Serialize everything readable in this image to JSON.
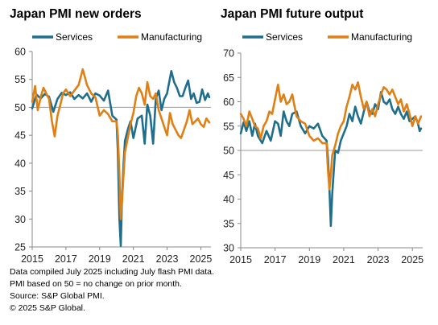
{
  "colors": {
    "services": "#1f6e8c",
    "manufacturing": "#e07f14",
    "reference_line": "#9a9a9a",
    "axis": "#888888"
  },
  "footer": {
    "line1": "Data compiled July 2025 including July flash PMI data.",
    "line2": "PMI based on 50 = no change on prior month.",
    "line3": "Source: S&P Global PMI.",
    "line4": "© 2025 S&P Global."
  },
  "chart_data": [
    {
      "type": "line",
      "title": "Japan PMI new orders",
      "ylim": [
        25,
        60
      ],
      "yticks": [
        25,
        30,
        35,
        40,
        45,
        50,
        55,
        60
      ],
      "xlim": [
        2015.0,
        2025.6
      ],
      "xticks": [
        "2015",
        "2017",
        "2019",
        "2021",
        "2023",
        "2025"
      ],
      "reference_line": 50,
      "legend_position": "top",
      "series": [
        {
          "name": "Services",
          "points": [
            [
              2015.0,
              49.8
            ],
            [
              2015.25,
              52.3
            ],
            [
              2015.5,
              51.6
            ],
            [
              2015.75,
              52.4
            ],
            [
              2016.0,
              51.9
            ],
            [
              2016.25,
              49.2
            ],
            [
              2016.5,
              51.5
            ],
            [
              2016.75,
              52.6
            ],
            [
              2017.0,
              52.2
            ],
            [
              2017.25,
              52.7
            ],
            [
              2017.5,
              51.5
            ],
            [
              2017.75,
              52.2
            ],
            [
              2018.0,
              51.6
            ],
            [
              2018.25,
              52.5
            ],
            [
              2018.5,
              51.0
            ],
            [
              2018.75,
              52.5
            ],
            [
              2019.0,
              52.1
            ],
            [
              2019.25,
              51.2
            ],
            [
              2019.5,
              53.0
            ],
            [
              2019.75,
              48.5
            ],
            [
              2020.0,
              47.8
            ],
            [
              2020.08,
              42.0
            ],
            [
              2020.17,
              30.0
            ],
            [
              2020.25,
              25.2
            ],
            [
              2020.33,
              34.0
            ],
            [
              2020.42,
              40.0
            ],
            [
              2020.5,
              44.0
            ],
            [
              2020.67,
              46.0
            ],
            [
              2020.83,
              47.5
            ],
            [
              2021.0,
              44.5
            ],
            [
              2021.25,
              48.0
            ],
            [
              2021.5,
              48.5
            ],
            [
              2021.67,
              43.5
            ],
            [
              2021.83,
              50.5
            ],
            [
              2022.0,
              48.5
            ],
            [
              2022.17,
              43.5
            ],
            [
              2022.33,
              51.5
            ],
            [
              2022.5,
              53.0
            ],
            [
              2022.67,
              49.5
            ],
            [
              2022.83,
              51.5
            ],
            [
              2023.0,
              52.5
            ],
            [
              2023.25,
              56.5
            ],
            [
              2023.42,
              54.5
            ],
            [
              2023.58,
              53.5
            ],
            [
              2023.75,
              52.0
            ],
            [
              2023.92,
              52.0
            ],
            [
              2024.08,
              53.5
            ],
            [
              2024.25,
              54.8
            ],
            [
              2024.42,
              51.5
            ],
            [
              2024.58,
              52.5
            ],
            [
              2024.75,
              50.8
            ],
            [
              2024.92,
              51.0
            ],
            [
              2025.08,
              53.2
            ],
            [
              2025.25,
              51.3
            ],
            [
              2025.42,
              52.5
            ],
            [
              2025.5,
              51.8
            ]
          ]
        },
        {
          "name": "Manufacturing",
          "points": [
            [
              2015.0,
              51.0
            ],
            [
              2015.17,
              53.8
            ],
            [
              2015.33,
              49.5
            ],
            [
              2015.5,
              51.8
            ],
            [
              2015.67,
              53.5
            ],
            [
              2015.83,
              52.5
            ],
            [
              2016.0,
              51.5
            ],
            [
              2016.17,
              47.5
            ],
            [
              2016.33,
              44.8
            ],
            [
              2016.5,
              48.5
            ],
            [
              2016.67,
              50.5
            ],
            [
              2016.83,
              52.5
            ],
            [
              2017.0,
              53.2
            ],
            [
              2017.25,
              52.0
            ],
            [
              2017.5,
              53.0
            ],
            [
              2017.75,
              54.0
            ],
            [
              2018.0,
              56.8
            ],
            [
              2018.25,
              54.0
            ],
            [
              2018.5,
              52.5
            ],
            [
              2018.75,
              51.8
            ],
            [
              2019.0,
              48.5
            ],
            [
              2019.25,
              49.5
            ],
            [
              2019.5,
              48.8
            ],
            [
              2019.75,
              47.5
            ],
            [
              2020.0,
              47.5
            ],
            [
              2020.08,
              45.0
            ],
            [
              2020.17,
              38.0
            ],
            [
              2020.25,
              30.0
            ],
            [
              2020.33,
              33.5
            ],
            [
              2020.42,
              38.0
            ],
            [
              2020.5,
              42.0
            ],
            [
              2020.67,
              44.5
            ],
            [
              2020.83,
              47.0
            ],
            [
              2021.0,
              49.0
            ],
            [
              2021.17,
              52.0
            ],
            [
              2021.33,
              53.5
            ],
            [
              2021.5,
              52.5
            ],
            [
              2021.67,
              50.5
            ],
            [
              2021.83,
              54.5
            ],
            [
              2022.0,
              52.0
            ],
            [
              2022.17,
              51.5
            ],
            [
              2022.33,
              52.5
            ],
            [
              2022.5,
              49.5
            ],
            [
              2022.67,
              48.0
            ],
            [
              2022.83,
              46.5
            ],
            [
              2023.0,
              45.0
            ],
            [
              2023.17,
              49.0
            ],
            [
              2023.33,
              47.0
            ],
            [
              2023.5,
              46.0
            ],
            [
              2023.67,
              45.0
            ],
            [
              2023.83,
              44.5
            ],
            [
              2024.0,
              46.0
            ],
            [
              2024.17,
              47.5
            ],
            [
              2024.33,
              49.5
            ],
            [
              2024.5,
              47.0
            ],
            [
              2024.67,
              47.5
            ],
            [
              2024.83,
              48.0
            ],
            [
              2025.0,
              47.0
            ],
            [
              2025.17,
              46.5
            ],
            [
              2025.33,
              48.0
            ],
            [
              2025.5,
              47.3
            ]
          ]
        }
      ]
    },
    {
      "type": "line",
      "title": "Japan PMI future output",
      "ylim": [
        30,
        70
      ],
      "yticks": [
        30,
        35,
        40,
        45,
        50,
        55,
        60,
        65,
        70
      ],
      "xlim": [
        2015.0,
        2025.6
      ],
      "xticks": [
        "2015",
        "2017",
        "2019",
        "2021",
        "2023",
        "2025"
      ],
      "reference_line": 50,
      "legend_position": "top",
      "series": [
        {
          "name": "Services",
          "points": [
            [
              2015.0,
              53.5
            ],
            [
              2015.17,
              55.8
            ],
            [
              2015.33,
              54.0
            ],
            [
              2015.5,
              56.0
            ],
            [
              2015.67,
              53.0
            ],
            [
              2015.83,
              55.5
            ],
            [
              2016.0,
              53.0
            ],
            [
              2016.25,
              51.5
            ],
            [
              2016.5,
              54.0
            ],
            [
              2016.75,
              52.0
            ],
            [
              2017.0,
              56.0
            ],
            [
              2017.17,
              55.5
            ],
            [
              2017.33,
              53.0
            ],
            [
              2017.5,
              58.0
            ],
            [
              2017.67,
              56.0
            ],
            [
              2017.83,
              55.0
            ],
            [
              2018.0,
              57.5
            ],
            [
              2018.25,
              58.0
            ],
            [
              2018.5,
              55.0
            ],
            [
              2018.75,
              53.5
            ],
            [
              2019.0,
              55.0
            ],
            [
              2019.25,
              54.5
            ],
            [
              2019.5,
              55.5
            ],
            [
              2019.75,
              53.0
            ],
            [
              2020.0,
              52.0
            ],
            [
              2020.08,
              48.5
            ],
            [
              2020.17,
              42.0
            ],
            [
              2020.25,
              34.5
            ],
            [
              2020.33,
              41.0
            ],
            [
              2020.42,
              46.0
            ],
            [
              2020.5,
              50.0
            ],
            [
              2020.67,
              49.5
            ],
            [
              2020.83,
              52.0
            ],
            [
              2021.0,
              53.5
            ],
            [
              2021.17,
              55.0
            ],
            [
              2021.33,
              57.5
            ],
            [
              2021.5,
              56.0
            ],
            [
              2021.67,
              59.0
            ],
            [
              2021.83,
              57.0
            ],
            [
              2022.0,
              55.5
            ],
            [
              2022.17,
              58.0
            ],
            [
              2022.33,
              60.0
            ],
            [
              2022.5,
              58.0
            ],
            [
              2022.67,
              57.5
            ],
            [
              2022.83,
              59.5
            ],
            [
              2023.0,
              58.5
            ],
            [
              2023.17,
              62.0
            ],
            [
              2023.33,
              60.0
            ],
            [
              2023.5,
              59.5
            ],
            [
              2023.67,
              60.5
            ],
            [
              2023.83,
              58.5
            ],
            [
              2024.0,
              57.5
            ],
            [
              2024.17,
              59.0
            ],
            [
              2024.33,
              57.5
            ],
            [
              2024.5,
              56.5
            ],
            [
              2024.67,
              58.0
            ],
            [
              2024.83,
              56.0
            ],
            [
              2025.0,
              56.5
            ],
            [
              2025.17,
              57.0
            ],
            [
              2025.33,
              55.5
            ],
            [
              2025.42,
              54.0
            ],
            [
              2025.5,
              54.5
            ]
          ]
        },
        {
          "name": "Manufacturing",
          "points": [
            [
              2015.0,
              57.5
            ],
            [
              2015.17,
              56.5
            ],
            [
              2015.33,
              55.0
            ],
            [
              2015.5,
              58.0
            ],
            [
              2015.67,
              56.5
            ],
            [
              2015.83,
              55.0
            ],
            [
              2016.0,
              54.5
            ],
            [
              2016.17,
              52.5
            ],
            [
              2016.33,
              55.0
            ],
            [
              2016.5,
              56.0
            ],
            [
              2016.67,
              58.0
            ],
            [
              2016.83,
              57.5
            ],
            [
              2017.0,
              60.5
            ],
            [
              2017.17,
              63.5
            ],
            [
              2017.33,
              60.0
            ],
            [
              2017.5,
              61.5
            ],
            [
              2017.67,
              59.5
            ],
            [
              2017.83,
              60.0
            ],
            [
              2018.0,
              61.5
            ],
            [
              2018.25,
              57.0
            ],
            [
              2018.5,
              56.0
            ],
            [
              2018.75,
              55.5
            ],
            [
              2019.0,
              53.0
            ],
            [
              2019.25,
              52.0
            ],
            [
              2019.5,
              52.5
            ],
            [
              2019.75,
              51.5
            ],
            [
              2020.0,
              51.5
            ],
            [
              2020.08,
              46.0
            ],
            [
              2020.17,
              42.0
            ],
            [
              2020.25,
              45.0
            ],
            [
              2020.33,
              49.0
            ],
            [
              2020.5,
              51.0
            ],
            [
              2020.67,
              53.5
            ],
            [
              2020.83,
              55.0
            ],
            [
              2021.0,
              56.0
            ],
            [
              2021.17,
              59.0
            ],
            [
              2021.33,
              61.0
            ],
            [
              2021.5,
              63.5
            ],
            [
              2021.67,
              62.5
            ],
            [
              2021.83,
              64.0
            ],
            [
              2022.0,
              61.0
            ],
            [
              2022.17,
              58.5
            ],
            [
              2022.33,
              60.0
            ],
            [
              2022.5,
              57.0
            ],
            [
              2022.67,
              58.5
            ],
            [
              2022.83,
              57.0
            ],
            [
              2023.0,
              59.5
            ],
            [
              2023.17,
              61.5
            ],
            [
              2023.33,
              63.0
            ],
            [
              2023.5,
              62.5
            ],
            [
              2023.67,
              61.5
            ],
            [
              2023.83,
              62.5
            ],
            [
              2024.0,
              61.0
            ],
            [
              2024.17,
              59.5
            ],
            [
              2024.33,
              60.5
            ],
            [
              2024.5,
              58.0
            ],
            [
              2024.67,
              59.5
            ],
            [
              2024.83,
              57.5
            ],
            [
              2025.0,
              55.0
            ],
            [
              2025.17,
              57.0
            ],
            [
              2025.33,
              55.5
            ],
            [
              2025.5,
              57.0
            ]
          ]
        }
      ]
    }
  ]
}
